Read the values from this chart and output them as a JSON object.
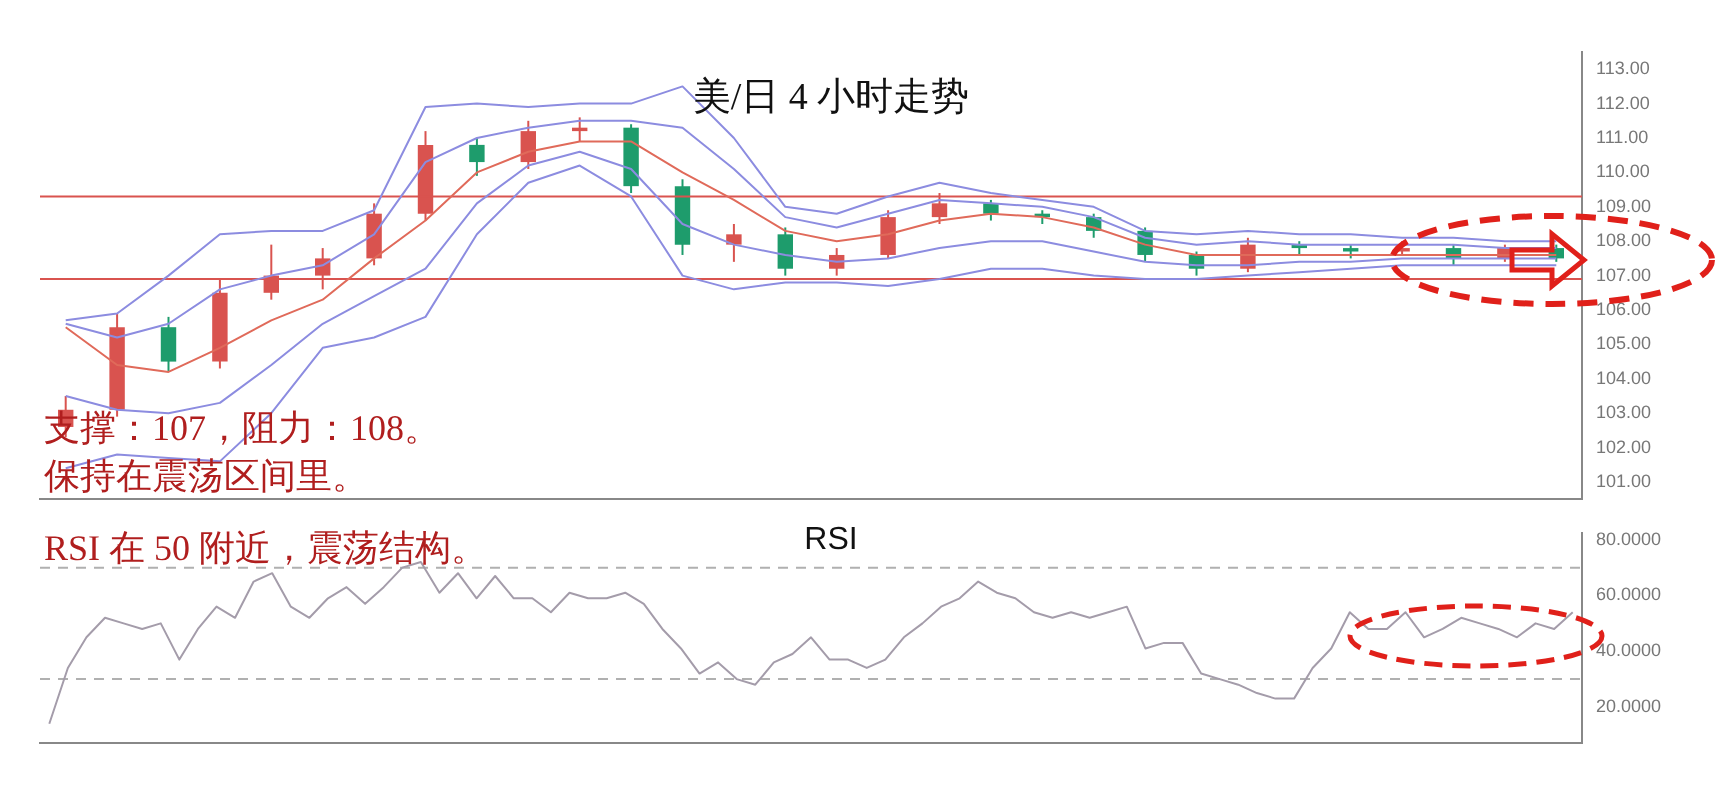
{
  "chart_data": [
    {
      "type": "candlestick",
      "title": "美/日 4 小时走势",
      "annotations": [
        "支撑：107，阻力：108。",
        "保持在震荡区间里。"
      ],
      "categories": [
        null,
        null,
        null,
        null,
        null,
        null,
        null,
        null,
        null,
        null,
        null,
        null,
        null,
        null,
        null,
        null,
        null,
        null,
        null,
        null,
        null,
        null,
        null,
        null,
        null,
        null,
        null,
        null,
        null,
        null
      ],
      "ohlc": [
        [
          102.6,
          103.5,
          102.3,
          103.1
        ],
        [
          103.1,
          105.9,
          102.9,
          105.5
        ],
        [
          105.5,
          105.8,
          104.2,
          104.5
        ],
        [
          104.5,
          106.9,
          104.3,
          106.5
        ],
        [
          106.5,
          107.9,
          106.3,
          107.0
        ],
        [
          107.0,
          107.8,
          106.6,
          107.5
        ],
        [
          107.5,
          109.1,
          107.3,
          108.8
        ],
        [
          108.8,
          111.2,
          108.6,
          110.8
        ],
        [
          110.8,
          111.0,
          109.9,
          110.3
        ],
        [
          110.3,
          111.5,
          110.1,
          111.2
        ],
        [
          111.2,
          111.6,
          110.9,
          111.3
        ],
        [
          111.3,
          111.4,
          109.4,
          109.6
        ],
        [
          109.6,
          109.8,
          107.6,
          107.9
        ],
        [
          107.9,
          108.5,
          107.4,
          108.2
        ],
        [
          108.2,
          108.4,
          107.0,
          107.2
        ],
        [
          107.2,
          107.8,
          107.0,
          107.6
        ],
        [
          107.6,
          108.9,
          107.5,
          108.7
        ],
        [
          108.7,
          109.4,
          108.5,
          109.1
        ],
        [
          109.1,
          109.2,
          108.6,
          108.8
        ],
        [
          108.8,
          108.9,
          108.5,
          108.7
        ],
        [
          108.7,
          108.8,
          108.1,
          108.3
        ],
        [
          108.3,
          108.4,
          107.4,
          107.6
        ],
        [
          107.6,
          107.7,
          107.0,
          107.2
        ],
        [
          107.2,
          108.1,
          107.1,
          107.9
        ],
        [
          107.9,
          108.0,
          107.6,
          107.8
        ],
        [
          107.8,
          107.9,
          107.5,
          107.7
        ],
        [
          107.7,
          108.0,
          107.6,
          107.8
        ],
        [
          107.8,
          107.9,
          107.3,
          107.5
        ],
        [
          107.5,
          107.9,
          107.4,
          107.8
        ],
        [
          107.8,
          107.9,
          107.4,
          107.5
        ]
      ],
      "series": [
        {
          "type": "line",
          "color": "#8c8ce0",
          "values": [
            105.7,
            105.9,
            107.0,
            108.2,
            108.3,
            108.3,
            108.9,
            111.9,
            112.0,
            111.9,
            112.0,
            112.0,
            112.5,
            111.0,
            109.0,
            108.8,
            109.3,
            109.7,
            109.4,
            109.2,
            109.0,
            108.3,
            108.2,
            108.3,
            108.2,
            108.2,
            108.1,
            108.1,
            108.0,
            108.0
          ]
        },
        {
          "type": "line",
          "color": "#8c8ce0",
          "values": [
            105.6,
            105.2,
            105.6,
            106.6,
            107.0,
            107.3,
            108.2,
            110.3,
            111.0,
            111.3,
            111.5,
            111.5,
            111.3,
            110.1,
            108.7,
            108.4,
            108.8,
            109.2,
            109.1,
            109.0,
            108.7,
            108.1,
            107.9,
            108.0,
            107.9,
            107.9,
            107.9,
            107.9,
            107.8,
            107.8
          ]
        },
        {
          "type": "line",
          "color": "#e06a5a",
          "values": [
            105.5,
            104.4,
            104.2,
            104.9,
            105.7,
            106.3,
            107.5,
            108.6,
            110.0,
            110.6,
            110.9,
            110.9,
            110.0,
            109.2,
            108.3,
            108.0,
            108.2,
            108.6,
            108.8,
            108.7,
            108.4,
            107.9,
            107.6,
            107.6,
            107.6,
            107.6,
            107.6,
            107.6,
            107.6,
            107.6
          ]
        },
        {
          "type": "line",
          "color": "#8c8ce0",
          "values": [
            103.5,
            103.1,
            103.0,
            103.3,
            104.4,
            105.6,
            106.4,
            107.2,
            109.1,
            110.2,
            110.6,
            110.1,
            108.5,
            107.9,
            107.6,
            107.4,
            107.5,
            107.8,
            108.0,
            108.0,
            107.7,
            107.4,
            107.3,
            107.3,
            107.4,
            107.4,
            107.5,
            107.5,
            107.5,
            107.5
          ]
        },
        {
          "type": "line",
          "color": "#8c8ce0",
          "values": [
            101.4,
            101.8,
            101.7,
            101.6,
            103.0,
            104.9,
            105.2,
            105.8,
            108.2,
            109.7,
            110.2,
            109.3,
            107.0,
            106.6,
            106.8,
            106.8,
            106.7,
            106.9,
            107.2,
            107.2,
            107.0,
            106.9,
            106.9,
            107.0,
            107.1,
            107.2,
            107.3,
            107.3,
            107.3,
            107.3
          ]
        }
      ],
      "ref_lines": [
        {
          "axis": "y",
          "value": 109.3,
          "color": "#d9534f"
        },
        {
          "axis": "y",
          "value": 106.9,
          "color": "#d9534f"
        }
      ],
      "ylim": [
        100.5,
        113.5
      ],
      "yticks": [
        {
          "value": 101,
          "label": "101.00"
        },
        {
          "value": 102,
          "label": "102.00"
        },
        {
          "value": 103,
          "label": "103.00"
        },
        {
          "value": 104,
          "label": "104.00"
        },
        {
          "value": 105,
          "label": "105.00"
        },
        {
          "value": 106,
          "label": "106.00"
        },
        {
          "value": 107,
          "label": "107.00"
        },
        {
          "value": 108,
          "label": "108.00"
        },
        {
          "value": 109,
          "label": "109.00"
        },
        {
          "value": 110,
          "label": "110.00"
        },
        {
          "value": 111,
          "label": "111.00"
        },
        {
          "value": 112,
          "label": "112.00"
        },
        {
          "value": 113,
          "label": "113.00"
        }
      ],
      "tick_labels": "y"
    },
    {
      "type": "line",
      "title": "RSI",
      "annotations": [
        "RSI 在 50 附近，震荡结构。"
      ],
      "categories": [
        null,
        null,
        null,
        null,
        null,
        null,
        null,
        null,
        null,
        null,
        null,
        null,
        null,
        null,
        null,
        null,
        null,
        null,
        null,
        null,
        null,
        null,
        null,
        null,
        null,
        null,
        null,
        null,
        null,
        null,
        null,
        null,
        null,
        null,
        null,
        null,
        null,
        null,
        null,
        null,
        null,
        null,
        null,
        null,
        null,
        null,
        null,
        null,
        null,
        null,
        null,
        null,
        null,
        null,
        null,
        null,
        null,
        null,
        null,
        null,
        null,
        null,
        null,
        null,
        null,
        null,
        null,
        null,
        null,
        null,
        null,
        null,
        null,
        null,
        null,
        null,
        null,
        null,
        null,
        null,
        null,
        null,
        null
      ],
      "values": [
        14,
        34,
        45,
        52,
        50,
        48,
        50,
        37,
        48,
        56,
        52,
        65,
        68,
        56,
        52,
        59,
        63,
        57,
        63,
        70,
        72,
        61,
        68,
        59,
        67,
        59,
        59,
        54,
        61,
        59,
        59,
        61,
        57,
        48,
        41,
        32,
        36,
        30,
        28,
        36,
        39,
        45,
        37,
        37,
        34,
        37,
        45,
        50,
        56,
        59,
        65,
        61,
        59,
        54,
        52,
        54,
        52,
        54,
        56,
        41,
        43,
        43,
        32,
        30,
        28,
        25,
        23,
        23,
        34,
        41,
        54,
        48,
        48,
        54,
        45,
        48,
        52,
        50,
        48,
        45,
        50,
        48,
        54
      ],
      "color": "#a49caa",
      "ref_lines": [
        {
          "axis": "y",
          "value": 70,
          "color": "#b0b0b0",
          "line_style": "dashed"
        },
        {
          "axis": "y",
          "value": 30,
          "color": "#b0b0b0",
          "line_style": "dashed"
        }
      ],
      "ylim": [
        7,
        82.5
      ],
      "yticks": [
        {
          "value": 20,
          "label": "20.0000"
        },
        {
          "value": 40,
          "label": "40.0000"
        },
        {
          "value": 60,
          "label": "60.0000"
        },
        {
          "value": 80,
          "label": "80.0000"
        }
      ],
      "tick_labels": "y"
    }
  ]
}
